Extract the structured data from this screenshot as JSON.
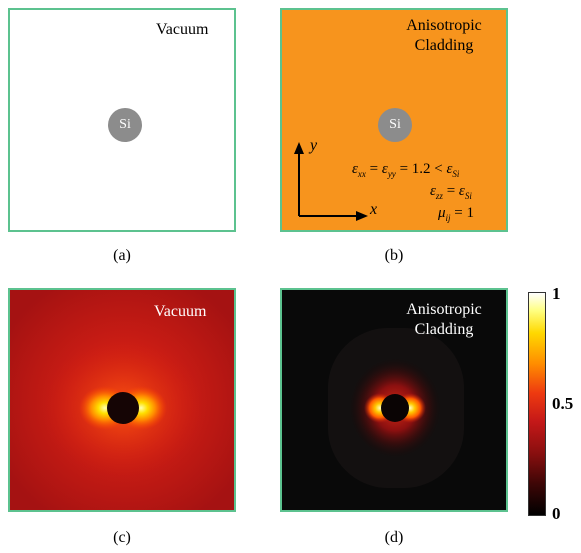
{
  "panels": {
    "a": {
      "title": "Vacuum",
      "particle": "Si",
      "caption": "(a)"
    },
    "b": {
      "title_line1": "Anisotropic",
      "title_line2": "Cladding",
      "particle": "Si",
      "caption": "(b)",
      "axes": {
        "x": "x",
        "y": "y"
      },
      "equations": {
        "eq1": {
          "lhs1": "ε",
          "lhs1_sub": "xx",
          "lhs2": "ε",
          "lhs2_sub": "yy",
          "rhs": "1.2 < ",
          "rhs_sym": "ε",
          "rhs_sub": "Si"
        },
        "eq2": {
          "lhs": "ε",
          "lhs_sub": "zz",
          "rhs": "ε",
          "rhs_sub": "Si"
        },
        "eq3": {
          "lhs": "μ",
          "lhs_sub": "ij",
          "rhs": "1"
        }
      }
    },
    "c": {
      "title": "Vacuum",
      "caption": "(c)"
    },
    "d": {
      "title_line1": "Anisotropic",
      "title_line2": "Cladding",
      "caption": "(d)"
    }
  },
  "colorbar": {
    "max_label": "1",
    "mid_label": "0.5",
    "min_label": "0",
    "colormap": "hot"
  },
  "colors": {
    "frame": "#5cc28f",
    "cladding": "#f7941d",
    "particle": "#8c8c8c"
  }
}
